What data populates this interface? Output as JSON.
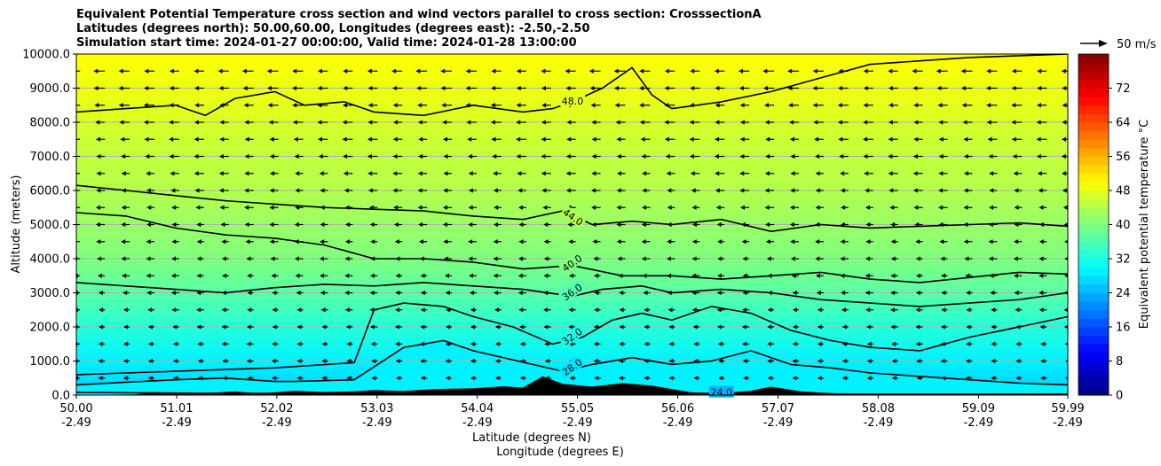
{
  "chart_data": {
    "type": "heatmap",
    "title_lines": [
      "Equivalent Potential Temperature cross section and wind vectors parallel to cross section: CrosssectionA",
      "Latitudes (degrees north): 50.00,60.00, Longitudes (degrees east): -2.50,-2.50",
      "Simulation start time: 2024-01-27 00:00:00, Valid time: 2024-01-28 13:00:00"
    ],
    "xlabel": "Latitude (degrees N)",
    "xlabel2": "Longitude (degrees E)",
    "ylabel": "Altitude (meters)",
    "xlim": [
      50.0,
      59.99
    ],
    "ylim": [
      0,
      10000
    ],
    "xticks": [
      {
        "value": 50.0,
        "lat": "50.00",
        "lon": "-2.49"
      },
      {
        "value": 51.01,
        "lat": "51.01",
        "lon": "-2.49"
      },
      {
        "value": 52.02,
        "lat": "52.02",
        "lon": "-2.49"
      },
      {
        "value": 53.03,
        "lat": "53.03",
        "lon": "-2.49"
      },
      {
        "value": 54.04,
        "lat": "54.04",
        "lon": "-2.49"
      },
      {
        "value": 55.05,
        "lat": "55.05",
        "lon": "-2.49"
      },
      {
        "value": 56.06,
        "lat": "56.06",
        "lon": "-2.49"
      },
      {
        "value": 57.07,
        "lat": "57.07",
        "lon": "-2.49"
      },
      {
        "value": 58.08,
        "lat": "58.08",
        "lon": "-2.49"
      },
      {
        "value": 59.09,
        "lat": "59.09",
        "lon": "-2.49"
      },
      {
        "value": 59.99,
        "lat": "59.99",
        "lon": "-2.49"
      }
    ],
    "yticks": [
      {
        "value": 0,
        "label": "0.0"
      },
      {
        "value": 1000,
        "label": "1000.0"
      },
      {
        "value": 2000,
        "label": "2000.0"
      },
      {
        "value": 3000,
        "label": "3000.0"
      },
      {
        "value": 4000,
        "label": "4000.0"
      },
      {
        "value": 5000,
        "label": "5000.0"
      },
      {
        "value": 6000,
        "label": "6000.0"
      },
      {
        "value": 7000,
        "label": "7000.0"
      },
      {
        "value": 8000,
        "label": "8000.0"
      },
      {
        "value": 9000,
        "label": "9000.0"
      },
      {
        "value": 10000,
        "label": "10000.0"
      }
    ],
    "grid": "horizontal",
    "colorbar": {
      "label": "Equivalent potential temperature $^\\circ$C",
      "label_text": "Equivalent potential temperature °C",
      "range": [
        0,
        80
      ],
      "ticks": [
        {
          "value": 0,
          "label": "0"
        },
        {
          "value": 8,
          "label": "8"
        },
        {
          "value": 16,
          "label": "16"
        },
        {
          "value": 24,
          "label": "24"
        },
        {
          "value": 32,
          "label": "32"
        },
        {
          "value": 40,
          "label": "40"
        },
        {
          "value": 48,
          "label": "48"
        },
        {
          "value": 56,
          "label": "56"
        },
        {
          "value": 64,
          "label": "64"
        },
        {
          "value": 72,
          "label": "72"
        }
      ],
      "colormap": "jet"
    },
    "quiver_key": {
      "label": "50 m/s",
      "speed": 50
    },
    "wind": {
      "direction": "toward lower latitude",
      "speed_range_ms": [
        5,
        18
      ],
      "altitude_step_m": 500
    },
    "theta_e_levels_C": [
      {
        "alt_m": 0,
        "value": 26
      },
      {
        "alt_m": 300,
        "value": 27
      },
      {
        "alt_m": 1000,
        "value": 29
      },
      {
        "alt_m": 2000,
        "value": 33
      },
      {
        "alt_m": 3000,
        "value": 37
      },
      {
        "alt_m": 4000,
        "value": 40
      },
      {
        "alt_m": 5000,
        "value": 42
      },
      {
        "alt_m": 6000,
        "value": 44
      },
      {
        "alt_m": 7500,
        "value": 46
      },
      {
        "alt_m": 8500,
        "value": 48
      },
      {
        "alt_m": 10000,
        "value": 50
      }
    ],
    "contours": [
      {
        "value": 24.0,
        "label": "24.0",
        "points": [
          [
            50.0,
            80
          ],
          [
            51.0,
            60
          ],
          [
            52.0,
            50
          ],
          [
            53.0,
            40
          ],
          [
            54.0,
            30
          ],
          [
            55.0,
            20
          ],
          [
            56.0,
            30
          ],
          [
            56.5,
            60
          ],
          [
            57.0,
            40
          ],
          [
            58.0,
            30
          ],
          [
            59.0,
            30
          ],
          [
            59.99,
            30
          ]
        ],
        "label_at": [
          56.5,
          60
        ]
      },
      {
        "value": 28.0,
        "label": "28.0",
        "points": [
          [
            50.0,
            300
          ],
          [
            50.5,
            380
          ],
          [
            51.0,
            450
          ],
          [
            51.5,
            500
          ],
          [
            52.0,
            400
          ],
          [
            52.2,
            400
          ],
          [
            52.8,
            450
          ],
          [
            53.3,
            1400
          ],
          [
            53.7,
            1600
          ],
          [
            54.0,
            1300
          ],
          [
            54.3,
            1100
          ],
          [
            54.6,
            900
          ],
          [
            54.9,
            700
          ],
          [
            55.2,
            900
          ],
          [
            55.6,
            1100
          ],
          [
            56.0,
            900
          ],
          [
            56.4,
            1000
          ],
          [
            56.8,
            1300
          ],
          [
            57.2,
            900
          ],
          [
            57.6,
            800
          ],
          [
            58.0,
            650
          ],
          [
            58.5,
            550
          ],
          [
            59.0,
            450
          ],
          [
            59.5,
            350
          ],
          [
            59.99,
            300
          ]
        ],
        "label_at": [
          55.0,
          800
        ]
      },
      {
        "value": 32.0,
        "label": "32.0",
        "points": [
          [
            50.0,
            600
          ],
          [
            50.5,
            650
          ],
          [
            51.0,
            700
          ],
          [
            51.5,
            750
          ],
          [
            52.0,
            800
          ],
          [
            52.8,
            950
          ],
          [
            53.0,
            2500
          ],
          [
            53.3,
            2700
          ],
          [
            53.7,
            2600
          ],
          [
            54.0,
            2300
          ],
          [
            54.4,
            2000
          ],
          [
            54.8,
            1500
          ],
          [
            55.1,
            1700
          ],
          [
            55.4,
            2200
          ],
          [
            55.7,
            2400
          ],
          [
            56.0,
            2200
          ],
          [
            56.4,
            2600
          ],
          [
            56.8,
            2400
          ],
          [
            57.2,
            1900
          ],
          [
            57.6,
            1600
          ],
          [
            58.0,
            1400
          ],
          [
            58.5,
            1300
          ],
          [
            59.0,
            1700
          ],
          [
            59.5,
            2000
          ],
          [
            59.99,
            2300
          ]
        ],
        "label_at": [
          55.0,
          1700
        ]
      },
      {
        "value": 36.0,
        "label": "36.0",
        "points": [
          [
            50.0,
            3300
          ],
          [
            50.5,
            3200
          ],
          [
            51.0,
            3100
          ],
          [
            51.5,
            3000
          ],
          [
            52.0,
            3150
          ],
          [
            52.5,
            3250
          ],
          [
            53.0,
            3200
          ],
          [
            53.5,
            3300
          ],
          [
            54.0,
            3200
          ],
          [
            54.5,
            3100
          ],
          [
            55.0,
            2900
          ],
          [
            55.3,
            3100
          ],
          [
            55.7,
            3200
          ],
          [
            56.0,
            3000
          ],
          [
            56.5,
            3100
          ],
          [
            57.0,
            3000
          ],
          [
            57.5,
            2800
          ],
          [
            58.0,
            2700
          ],
          [
            58.5,
            2600
          ],
          [
            59.0,
            2700
          ],
          [
            59.5,
            2800
          ],
          [
            59.99,
            3000
          ]
        ],
        "label_at": [
          55.0,
          3000
        ]
      },
      {
        "value": 40.0,
        "label": "40.0",
        "points": [
          [
            50.0,
            5350
          ],
          [
            50.5,
            5250
          ],
          [
            51.0,
            4900
          ],
          [
            51.5,
            4700
          ],
          [
            52.0,
            4600
          ],
          [
            52.5,
            4400
          ],
          [
            53.0,
            4000
          ],
          [
            53.5,
            4000
          ],
          [
            54.0,
            3900
          ],
          [
            54.5,
            3700
          ],
          [
            55.0,
            3800
          ],
          [
            55.5,
            3500
          ],
          [
            56.0,
            3500
          ],
          [
            56.5,
            3400
          ],
          [
            57.0,
            3500
          ],
          [
            57.5,
            3600
          ],
          [
            58.0,
            3400
          ],
          [
            58.5,
            3300
          ],
          [
            59.0,
            3450
          ],
          [
            59.5,
            3600
          ],
          [
            59.99,
            3550
          ]
        ],
        "label_at": [
          55.0,
          3850
        ]
      },
      {
        "value": 44.0,
        "label": "44.0",
        "points": [
          [
            50.0,
            6150
          ],
          [
            50.5,
            6000
          ],
          [
            51.0,
            5850
          ],
          [
            51.5,
            5700
          ],
          [
            52.0,
            5600
          ],
          [
            52.5,
            5500
          ],
          [
            53.0,
            5450
          ],
          [
            53.5,
            5400
          ],
          [
            54.0,
            5250
          ],
          [
            54.5,
            5150
          ],
          [
            54.9,
            5400
          ],
          [
            55.2,
            5000
          ],
          [
            55.6,
            5100
          ],
          [
            56.0,
            5000
          ],
          [
            56.5,
            5150
          ],
          [
            57.0,
            4800
          ],
          [
            57.5,
            5000
          ],
          [
            58.0,
            4900
          ],
          [
            58.5,
            4950
          ],
          [
            59.0,
            5000
          ],
          [
            59.5,
            5050
          ],
          [
            59.99,
            4950
          ]
        ],
        "label_at": [
          55.0,
          5200
        ]
      },
      {
        "value": 48.0,
        "label": "48.0",
        "points": [
          [
            50.0,
            8300
          ],
          [
            50.5,
            8400
          ],
          [
            51.0,
            8500
          ],
          [
            51.3,
            8200
          ],
          [
            51.6,
            8700
          ],
          [
            52.0,
            8900
          ],
          [
            52.3,
            8500
          ],
          [
            52.7,
            8600
          ],
          [
            53.0,
            8300
          ],
          [
            53.5,
            8200
          ],
          [
            54.0,
            8500
          ],
          [
            54.5,
            8300
          ],
          [
            54.8,
            8400
          ],
          [
            55.0,
            8600
          ],
          [
            55.3,
            9000
          ],
          [
            55.6,
            9600
          ],
          [
            55.8,
            8800
          ],
          [
            56.0,
            8400
          ],
          [
            56.5,
            8600
          ],
          [
            57.0,
            8900
          ],
          [
            57.5,
            9300
          ],
          [
            58.0,
            9700
          ],
          [
            58.5,
            9800
          ],
          [
            59.0,
            9900
          ],
          [
            59.5,
            9950
          ],
          [
            59.99,
            10000
          ]
        ],
        "label_at": [
          55.0,
          8600
        ]
      }
    ],
    "terrain_m": [
      [
        50.0,
        0
      ],
      [
        50.6,
        20
      ],
      [
        50.8,
        90
      ],
      [
        51.0,
        40
      ],
      [
        51.3,
        60
      ],
      [
        51.6,
        110
      ],
      [
        51.8,
        60
      ],
      [
        52.0,
        80
      ],
      [
        52.2,
        130
      ],
      [
        52.5,
        90
      ],
      [
        52.8,
        110
      ],
      [
        53.0,
        150
      ],
      [
        53.3,
        120
      ],
      [
        53.6,
        180
      ],
      [
        54.0,
        200
      ],
      [
        54.3,
        260
      ],
      [
        54.5,
        220
      ],
      [
        54.7,
        550
      ],
      [
        54.9,
        330
      ],
      [
        55.2,
        250
      ],
      [
        55.5,
        350
      ],
      [
        55.8,
        280
      ],
      [
        56.0,
        180
      ],
      [
        56.2,
        80
      ],
      [
        56.5,
        60
      ],
      [
        56.8,
        130
      ],
      [
        57.0,
        250
      ],
      [
        57.3,
        110
      ],
      [
        57.6,
        60
      ],
      [
        58.0,
        20
      ],
      [
        58.5,
        0
      ],
      [
        59.99,
        0
      ]
    ]
  }
}
